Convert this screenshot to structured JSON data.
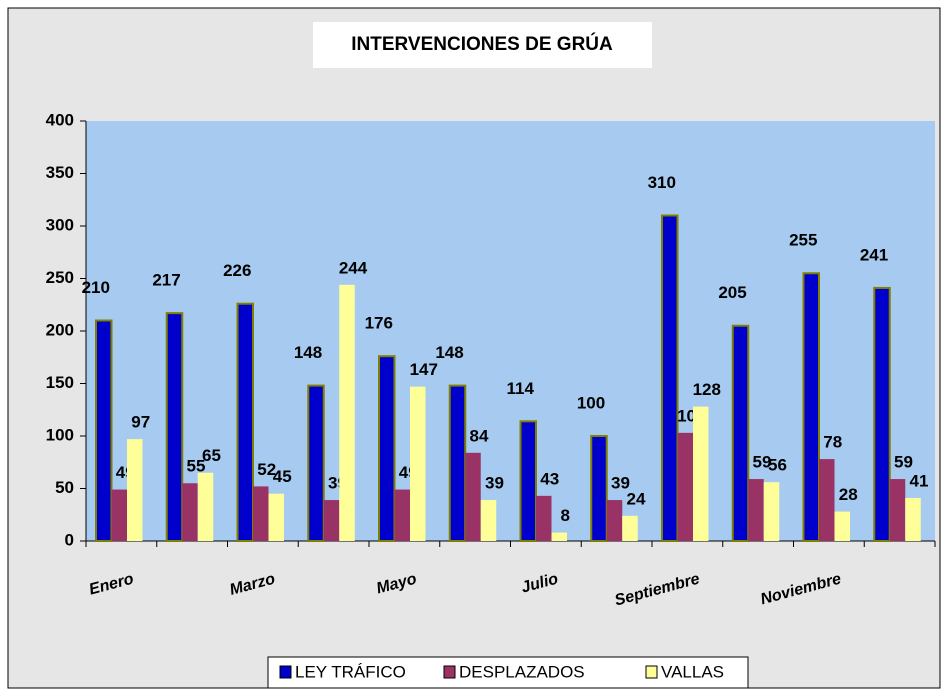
{
  "chart_data": {
    "type": "bar",
    "title": "INTERVENCIONES DE GRÚA",
    "categories": [
      "Enero",
      null,
      "Marzo",
      null,
      "Mayo",
      null,
      "Julio",
      null,
      "Septiembre",
      null,
      "Noviembre",
      null
    ],
    "series": [
      {
        "name": "LEY TRÁFICO",
        "color": "#0000cc",
        "values": [
          210,
          217,
          226,
          148,
          176,
          148,
          114,
          100,
          310,
          205,
          255,
          241
        ]
      },
      {
        "name": "DESPLAZADOS",
        "color": "#993366",
        "values": [
          49,
          55,
          52,
          39,
          49,
          84,
          43,
          39,
          103,
          59,
          78,
          59
        ]
      },
      {
        "name": "VALLAS",
        "color": "#ffff99",
        "values": [
          97,
          65,
          45,
          244,
          147,
          39,
          8,
          24,
          128,
          56,
          28,
          41
        ]
      }
    ],
    "ylim": [
      0,
      400
    ],
    "yticks": [
      0,
      50,
      100,
      150,
      200,
      250,
      300,
      350,
      400
    ],
    "grid": false,
    "legend": "bottom"
  }
}
